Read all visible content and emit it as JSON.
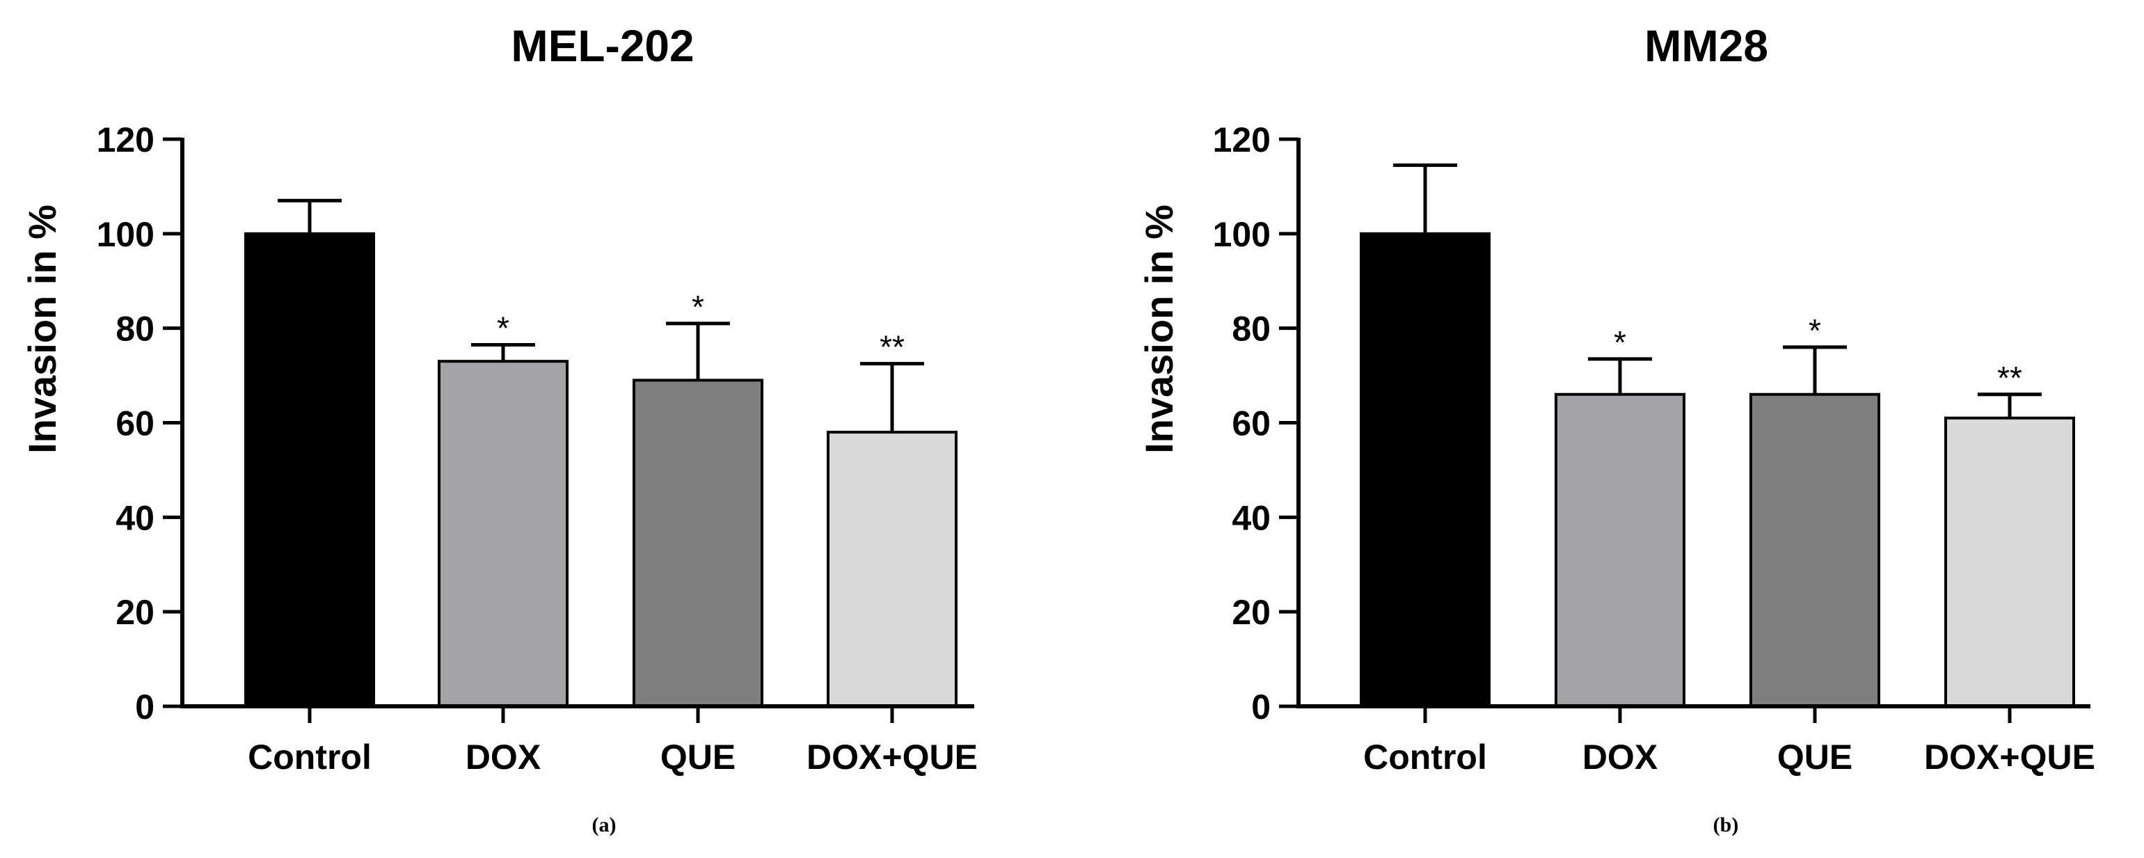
{
  "chart_data": [
    {
      "type": "bar",
      "title": "MEL-202",
      "ylabel": "Invasion in %",
      "xlabel": "",
      "ylim": [
        0,
        120
      ],
      "yticks": [
        "0",
        "20",
        "40",
        "60",
        "80",
        "100",
        "120"
      ],
      "categories": [
        "Control",
        "DOX",
        "QUE",
        "DOX+QUE"
      ],
      "values": [
        100,
        73,
        69,
        58
      ],
      "error_upper": [
        107,
        76.5,
        81,
        72.5
      ],
      "significance": [
        "",
        "*",
        "*",
        "**"
      ],
      "bar_colors": [
        "#000000",
        "#a3a3a6",
        "#7f7f7f",
        "#d9d9d9"
      ],
      "panel_label": "(a)",
      "grid": false
    },
    {
      "type": "bar",
      "title": "MM28",
      "ylabel": "Invasion in %",
      "xlabel": "",
      "ylim": [
        0,
        120
      ],
      "yticks": [
        "0",
        "20",
        "40",
        "60",
        "80",
        "100",
        "120"
      ],
      "categories": [
        "Control",
        "DOX",
        "QUE",
        "DOX+QUE"
      ],
      "values": [
        100,
        66,
        66,
        61
      ],
      "error_upper": [
        114.5,
        73.5,
        76,
        66
      ],
      "significance": [
        "",
        "*",
        "*",
        "**"
      ],
      "bar_colors": [
        "#000000",
        "#a3a3a6",
        "#7f7f7f",
        "#d9d9d9"
      ],
      "panel_label": "(b)",
      "grid": false
    }
  ]
}
